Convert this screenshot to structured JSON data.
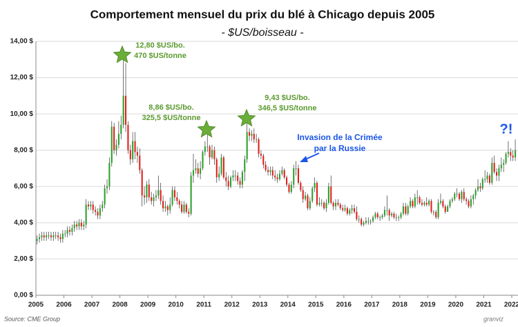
{
  "chart_data": {
    "type": "candlestick",
    "title": "Comportement mensuel du prix du blé à Chicago depuis 2005",
    "subtitle": "- $US/boisseau -",
    "source": "Source: CME Group",
    "logo": "granviz",
    "xlim": [
      2005,
      2022
    ],
    "xticks": [
      2005,
      2006,
      2007,
      2008,
      2009,
      2010,
      2011,
      2012,
      2013,
      2014,
      2015,
      2016,
      2017,
      2018,
      2019,
      2020,
      2021,
      2022
    ],
    "ylim": [
      0,
      14
    ],
    "yticks": [
      {
        "value": 0,
        "label": "0,00 $"
      },
      {
        "value": 2,
        "label": "2,00 $"
      },
      {
        "value": 4,
        "label": "4,00 $"
      },
      {
        "value": 6,
        "label": "6,00 $"
      },
      {
        "value": 8,
        "label": "8,00 $"
      },
      {
        "value": 10,
        "label": "10,00 $"
      },
      {
        "value": 12,
        "label": "12,00 $"
      },
      {
        "value": 14,
        "label": "14,00 $"
      }
    ],
    "grid": true,
    "up_color": "#2ca02c",
    "down_color": "#e0201b",
    "open": [
      3.0,
      3.1,
      3.2,
      3.3,
      3.2,
      3.3,
      3.3,
      3.2,
      3.3,
      3.3,
      3.2,
      3.1,
      3.4,
      3.4,
      3.6,
      3.5,
      3.7,
      3.9,
      3.8,
      4.0,
      3.8,
      3.9,
      5.0,
      4.9,
      5.0,
      4.7,
      4.6,
      4.4,
      4.8,
      5.0,
      5.9,
      6.0,
      7.3,
      9.3,
      8.0,
      8.3,
      8.9,
      9.4,
      11.0,
      9.4,
      8.0,
      7.5,
      8.5,
      7.9,
      7.7,
      6.9,
      5.5,
      5.4,
      6.1,
      5.4,
      5.2,
      5.4,
      5.5,
      5.8,
      5.2,
      4.8,
      4.9,
      4.7,
      5.0,
      5.8,
      5.4,
      5.2,
      5.0,
      4.6,
      5.0,
      4.6,
      4.5,
      6.6,
      6.9,
      7.0,
      6.7,
      7.0,
      7.9,
      8.2,
      8.2,
      7.6,
      8.0,
      7.5,
      6.5,
      6.7,
      7.6,
      6.5,
      6.3,
      6.0,
      6.5,
      6.6,
      6.6,
      6.3,
      6.1,
      6.8,
      7.5,
      9.0,
      8.8,
      8.9,
      8.6,
      8.6,
      7.8,
      7.7,
      7.2,
      6.9,
      6.8,
      6.9,
      6.6,
      6.5,
      6.4,
      6.7,
      6.9,
      6.5,
      6.1,
      5.7,
      6.1,
      7.0,
      7.0,
      6.2,
      5.8,
      5.3,
      5.5,
      4.8,
      5.2,
      5.9,
      6.2,
      5.0,
      5.1,
      5.1,
      4.8,
      5.1,
      6.0,
      5.1,
      4.9,
      5.1,
      5.0,
      4.8,
      4.7,
      4.8,
      4.5,
      4.7,
      4.8,
      4.6,
      4.2,
      4.2,
      3.9,
      4.0,
      4.1,
      4.1,
      4.1,
      4.3,
      4.5,
      4.3,
      4.3,
      4.4,
      4.7,
      4.7,
      4.4,
      4.5,
      4.3,
      4.3,
      4.3,
      4.5,
      4.9,
      4.5,
      4.9,
      5.2,
      4.9,
      5.4,
      5.4,
      5.1,
      5.0,
      5.1,
      5.0,
      5.2,
      4.6,
      4.6,
      4.3,
      5.1,
      5.2,
      4.9,
      4.6,
      4.9,
      5.2,
      5.3,
      5.6,
      5.6,
      5.3,
      5.7,
      5.3,
      5.2,
      4.9,
      5.3,
      5.5,
      5.8,
      6.0,
      5.9,
      6.4,
      6.4,
      6.6,
      6.2,
      7.3,
      6.8,
      6.6,
      7.0,
      7.2,
      7.3,
      7.8,
      7.9,
      7.7,
      7.6
    ],
    "high": [
      3.3,
      3.4,
      3.5,
      3.5,
      3.5,
      3.5,
      3.5,
      3.5,
      3.5,
      3.5,
      3.4,
      3.6,
      3.6,
      3.8,
      3.8,
      3.9,
      4.1,
      4.1,
      4.2,
      4.2,
      4.1,
      5.3,
      5.2,
      5.2,
      5.2,
      4.9,
      4.8,
      5.0,
      5.2,
      6.1,
      6.4,
      7.6,
      9.6,
      9.5,
      8.6,
      9.6,
      9.9,
      13.3,
      12.8,
      9.6,
      8.3,
      9.0,
      9.0,
      8.2,
      8.1,
      7.0,
      6.0,
      6.3,
      6.4,
      5.7,
      5.6,
      5.8,
      6.6,
      6.2,
      5.5,
      5.2,
      5.0,
      5.4,
      6.0,
      6.0,
      5.7,
      5.3,
      5.2,
      5.2,
      5.1,
      4.8,
      6.8,
      7.8,
      7.5,
      7.3,
      7.4,
      8.0,
      8.5,
      8.9,
      8.3,
      8.3,
      8.2,
      7.6,
      7.1,
      7.8,
      7.7,
      6.8,
      6.6,
      6.6,
      6.9,
      6.9,
      6.8,
      6.5,
      6.9,
      7.7,
      9.5,
      9.2,
      9.1,
      9.2,
      8.9,
      8.7,
      8.0,
      7.8,
      7.4,
      7.1,
      7.1,
      7.1,
      6.9,
      6.7,
      6.9,
      7.1,
      7.0,
      6.6,
      6.2,
      6.3,
      7.2,
      7.4,
      7.2,
      6.3,
      6.0,
      5.7,
      5.6,
      5.4,
      6.0,
      6.5,
      6.3,
      5.4,
      5.3,
      5.2,
      5.3,
      6.2,
      6.6,
      5.2,
      5.3,
      5.3,
      5.1,
      5.0,
      5.0,
      4.9,
      4.8,
      5.0,
      5.0,
      4.9,
      4.4,
      4.3,
      4.1,
      4.3,
      4.3,
      4.2,
      4.4,
      4.6,
      4.6,
      4.4,
      4.5,
      4.9,
      5.5,
      4.8,
      4.6,
      4.6,
      4.5,
      4.4,
      4.6,
      5.1,
      5.1,
      5.0,
      5.4,
      5.3,
      5.6,
      5.8,
      5.5,
      5.3,
      5.2,
      5.4,
      5.3,
      5.3,
      4.7,
      4.7,
      5.3,
      5.6,
      5.3,
      5.0,
      5.0,
      5.3,
      5.4,
      5.7,
      5.9,
      5.7,
      5.8,
      5.9,
      5.4,
      5.3,
      5.5,
      5.6,
      5.9,
      6.4,
      6.2,
      6.5,
      6.9,
      6.8,
      6.7,
      7.6,
      7.7,
      7.0,
      7.2,
      7.6,
      7.5,
      7.9,
      8.5,
      8.1,
      8.0,
      8.6
    ],
    "low": [
      2.8,
      2.9,
      3.0,
      3.0,
      3.0,
      3.1,
      3.0,
      3.0,
      3.1,
      3.0,
      2.9,
      2.9,
      3.2,
      3.2,
      3.3,
      3.3,
      3.5,
      3.6,
      3.6,
      3.6,
      3.6,
      3.7,
      4.7,
      4.7,
      4.5,
      4.4,
      4.2,
      4.2,
      4.6,
      4.8,
      5.6,
      5.8,
      7.1,
      7.8,
      7.7,
      8.1,
      8.6,
      9.2,
      9.0,
      7.8,
      7.2,
      7.3,
      7.5,
      7.3,
      6.7,
      4.9,
      5.0,
      5.1,
      5.2,
      5.0,
      4.9,
      5.2,
      5.3,
      5.0,
      4.6,
      4.6,
      4.4,
      4.5,
      4.9,
      5.2,
      5.0,
      4.8,
      4.5,
      4.5,
      4.5,
      4.3,
      4.4,
      6.2,
      6.7,
      6.5,
      6.4,
      6.9,
      7.7,
      7.9,
      7.2,
      7.5,
      7.2,
      6.2,
      6.3,
      6.6,
      6.4,
      6.0,
      5.8,
      5.9,
      6.3,
      6.3,
      6.1,
      5.9,
      5.9,
      6.3,
      7.3,
      8.5,
      8.5,
      8.4,
      8.4,
      7.6,
      7.5,
      7.0,
      6.8,
      6.6,
      6.6,
      6.4,
      6.3,
      6.2,
      6.3,
      6.6,
      6.4,
      6.0,
      5.6,
      5.6,
      5.9,
      6.6,
      6.1,
      5.7,
      5.1,
      5.2,
      4.7,
      4.7,
      5.1,
      5.7,
      4.9,
      4.9,
      4.9,
      4.7,
      4.6,
      5.0,
      5.0,
      4.7,
      4.7,
      4.9,
      4.7,
      4.6,
      4.6,
      4.4,
      4.4,
      4.5,
      4.5,
      4.1,
      4.0,
      3.8,
      3.8,
      3.9,
      3.9,
      3.9,
      4.0,
      4.2,
      4.2,
      4.1,
      4.2,
      4.3,
      4.4,
      4.1,
      4.3,
      4.2,
      4.1,
      4.1,
      4.2,
      4.4,
      4.4,
      4.4,
      4.8,
      4.8,
      4.8,
      5.0,
      5.0,
      4.9,
      4.9,
      4.9,
      4.9,
      4.5,
      4.4,
      4.2,
      4.2,
      5.0,
      4.8,
      4.5,
      4.6,
      4.8,
      5.1,
      5.2,
      5.4,
      5.2,
      5.1,
      5.2,
      5.0,
      4.8,
      4.8,
      5.0,
      5.3,
      5.7,
      5.7,
      5.8,
      6.2,
      6.2,
      6.1,
      6.1,
      6.7,
      6.3,
      6.3,
      6.8,
      6.8,
      7.2,
      7.6,
      7.4,
      7.4,
      7.4
    ],
    "close": [
      3.1,
      3.2,
      3.3,
      3.2,
      3.3,
      3.3,
      3.2,
      3.3,
      3.3,
      3.2,
      3.1,
      3.4,
      3.4,
      3.6,
      3.5,
      3.7,
      3.9,
      3.8,
      4.0,
      3.8,
      3.9,
      5.0,
      4.9,
      5.0,
      4.7,
      4.6,
      4.4,
      4.8,
      5.0,
      5.9,
      6.0,
      7.3,
      9.3,
      8.0,
      8.3,
      8.9,
      9.4,
      11.0,
      9.4,
      8.0,
      7.5,
      8.5,
      7.9,
      7.7,
      6.9,
      5.5,
      5.4,
      6.1,
      5.4,
      5.2,
      5.4,
      5.5,
      5.8,
      5.2,
      4.8,
      4.9,
      4.7,
      5.0,
      5.8,
      5.4,
      5.2,
      5.0,
      4.6,
      5.0,
      4.6,
      4.5,
      6.6,
      6.9,
      7.0,
      6.7,
      7.0,
      7.9,
      8.2,
      8.2,
      7.6,
      8.0,
      7.5,
      6.5,
      6.7,
      7.6,
      6.5,
      6.3,
      6.0,
      6.5,
      6.6,
      6.6,
      6.3,
      6.1,
      6.8,
      7.5,
      9.0,
      8.8,
      8.9,
      8.6,
      8.6,
      7.8,
      7.7,
      7.2,
      6.9,
      6.8,
      6.9,
      6.6,
      6.5,
      6.4,
      6.7,
      6.9,
      6.5,
      6.1,
      5.7,
      6.1,
      7.0,
      7.0,
      6.2,
      5.8,
      5.3,
      5.5,
      4.8,
      5.2,
      5.9,
      6.2,
      5.0,
      5.1,
      5.1,
      4.8,
      5.1,
      6.0,
      5.1,
      4.9,
      5.1,
      5.0,
      4.8,
      4.7,
      4.8,
      4.5,
      4.7,
      4.8,
      4.6,
      4.2,
      4.2,
      3.9,
      4.0,
      4.1,
      4.1,
      4.1,
      4.3,
      4.5,
      4.3,
      4.3,
      4.4,
      4.7,
      4.7,
      4.4,
      4.5,
      4.3,
      4.3,
      4.3,
      4.5,
      4.9,
      4.5,
      4.9,
      5.2,
      4.9,
      5.4,
      5.4,
      5.1,
      5.0,
      5.1,
      5.0,
      5.2,
      4.6,
      4.6,
      4.3,
      5.1,
      5.2,
      4.9,
      4.6,
      4.9,
      5.2,
      5.3,
      5.6,
      5.6,
      5.3,
      5.7,
      5.3,
      5.2,
      4.9,
      5.3,
      5.5,
      5.8,
      6.0,
      5.9,
      6.4,
      6.4,
      6.6,
      6.2,
      7.3,
      6.8,
      6.6,
      7.0,
      7.2,
      7.3,
      7.8,
      7.9,
      7.7,
      7.6,
      8.0
    ],
    "annotations": [
      {
        "lines": [
          "12,80 $US/bo.",
          "470 $US/tonne"
        ],
        "color": "#5a9a2f"
      },
      {
        "lines": [
          "8,86 $US/bo.",
          "325,5 $US/tonne"
        ],
        "color": "#5a9a2f"
      },
      {
        "lines": [
          "9,43 $US/bo.",
          "346,5 $US/tonne"
        ],
        "color": "#5a9a2f"
      },
      {
        "lines": [
          "Invasion de la Crimée",
          "par la Russie"
        ],
        "color": "#1a56e8"
      },
      {
        "lines": [
          "?!"
        ],
        "color": "#1a56e8"
      }
    ]
  }
}
